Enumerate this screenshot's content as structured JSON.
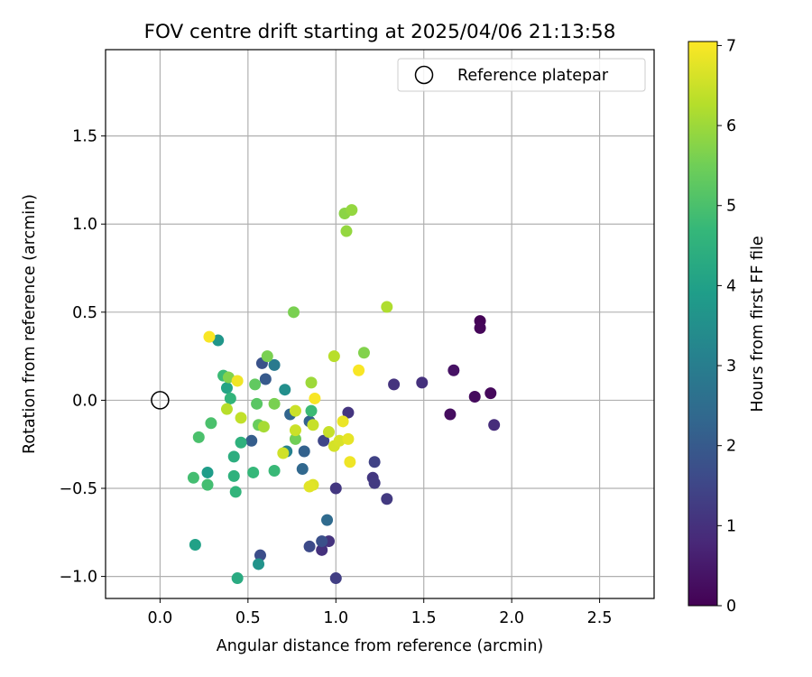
{
  "chart_data": {
    "type": "scatter",
    "title": "FOV centre drift starting at 2025/04/06 21:13:58",
    "xlabel": "Angular distance from reference (arcmin)",
    "ylabel": "Rotation from reference (arcmin)",
    "xlim": [
      -0.31,
      2.81
    ],
    "ylim": [
      -1.125,
      1.99
    ],
    "xticks": [
      0.0,
      0.5,
      1.0,
      1.5,
      2.0,
      2.5
    ],
    "xtick_labels": [
      "0.0",
      "0.5",
      "1.0",
      "1.5",
      "2.0",
      "2.5"
    ],
    "yticks": [
      -1.0,
      -0.5,
      0.0,
      0.5,
      1.0,
      1.5
    ],
    "ytick_labels": [
      "−1.0",
      "−0.5",
      "0.0",
      "0.5",
      "1.0",
      "1.5"
    ],
    "grid": true,
    "legend": {
      "position": "top-right",
      "entries": [
        "Reference platepar"
      ]
    },
    "reference_point": {
      "x": 0.0,
      "y": 0.0,
      "label": "Reference platepar"
    },
    "colorbar": {
      "label": "Hours from first FF file",
      "colormap": "viridis",
      "range": [
        0,
        7.05
      ],
      "ticks": [
        0,
        1,
        2,
        3,
        4,
        5,
        6,
        7
      ],
      "tick_labels": [
        "0",
        "1",
        "2",
        "3",
        "4",
        "5",
        "6",
        "7"
      ],
      "stops": [
        "#440154",
        "#482878",
        "#3e4989",
        "#31688e",
        "#26828e",
        "#1f9e89",
        "#35b779",
        "#6ece58",
        "#b5de2b",
        "#fde725"
      ]
    },
    "series": [
      {
        "points": [
          {
            "x": 1.82,
            "y": 0.45,
            "c": 0.05
          },
          {
            "x": 1.82,
            "y": 0.41,
            "c": 0.1
          },
          {
            "x": 1.88,
            "y": 0.04,
            "c": 0.15
          },
          {
            "x": 1.79,
            "y": 0.02,
            "c": 0.2
          },
          {
            "x": 1.65,
            "y": -0.08,
            "c": 0.25
          },
          {
            "x": 1.67,
            "y": 0.17,
            "c": 0.35
          },
          {
            "x": 1.9,
            "y": -0.14,
            "c": 0.9
          },
          {
            "x": 1.49,
            "y": 0.1,
            "c": 1.0
          },
          {
            "x": 1.33,
            "y": 0.09,
            "c": 1.05
          },
          {
            "x": 1.07,
            "y": -0.07,
            "c": 1.1
          },
          {
            "x": 0.92,
            "y": -0.85,
            "c": 1.0
          },
          {
            "x": 0.96,
            "y": -0.8,
            "c": 1.05
          },
          {
            "x": 1.0,
            "y": -0.5,
            "c": 1.15
          },
          {
            "x": 1.21,
            "y": -0.44,
            "c": 1.15
          },
          {
            "x": 1.22,
            "y": -0.47,
            "c": 1.2
          },
          {
            "x": 1.29,
            "y": -0.56,
            "c": 1.2
          },
          {
            "x": 1.0,
            "y": -1.01,
            "c": 1.3
          },
          {
            "x": 1.22,
            "y": -0.35,
            "c": 1.4
          },
          {
            "x": 0.93,
            "y": -0.23,
            "c": 1.5
          },
          {
            "x": 0.85,
            "y": -0.83,
            "c": 1.6
          },
          {
            "x": 0.57,
            "y": -0.88,
            "c": 1.7
          },
          {
            "x": 0.92,
            "y": -0.8,
            "c": 1.75
          },
          {
            "x": 0.58,
            "y": 0.21,
            "c": 1.8
          },
          {
            "x": 0.6,
            "y": 0.12,
            "c": 2.0
          },
          {
            "x": 0.52,
            "y": -0.23,
            "c": 2.1
          },
          {
            "x": 0.82,
            "y": -0.29,
            "c": 2.2
          },
          {
            "x": 0.85,
            "y": -0.12,
            "c": 2.2
          },
          {
            "x": 0.74,
            "y": -0.08,
            "c": 2.3
          },
          {
            "x": 0.81,
            "y": -0.39,
            "c": 2.35
          },
          {
            "x": 0.95,
            "y": -0.68,
            "c": 2.45
          },
          {
            "x": 0.65,
            "y": 0.2,
            "c": 2.9
          },
          {
            "x": 0.72,
            "y": -0.29,
            "c": 3.1
          },
          {
            "x": 0.71,
            "y": 0.06,
            "c": 3.5
          },
          {
            "x": 0.56,
            "y": -0.93,
            "c": 3.6
          },
          {
            "x": 0.33,
            "y": 0.34,
            "c": 3.7
          },
          {
            "x": 0.27,
            "y": -0.41,
            "c": 3.9
          },
          {
            "x": 0.2,
            "y": -0.82,
            "c": 4.0
          },
          {
            "x": 0.38,
            "y": 0.07,
            "c": 4.1
          },
          {
            "x": 0.44,
            "y": -1.01,
            "c": 4.3
          },
          {
            "x": 0.42,
            "y": -0.32,
            "c": 4.4
          },
          {
            "x": 0.42,
            "y": -0.43,
            "c": 4.5
          },
          {
            "x": 0.46,
            "y": -0.24,
            "c": 4.5
          },
          {
            "x": 0.43,
            "y": -0.52,
            "c": 4.6
          },
          {
            "x": 0.4,
            "y": 0.01,
            "c": 4.6
          },
          {
            "x": 0.53,
            "y": -0.41,
            "c": 4.7
          },
          {
            "x": 0.65,
            "y": -0.4,
            "c": 4.75
          },
          {
            "x": 0.86,
            "y": -0.06,
            "c": 4.8
          },
          {
            "x": 0.36,
            "y": 0.14,
            "c": 4.8
          },
          {
            "x": 0.19,
            "y": -0.44,
            "c": 4.9
          },
          {
            "x": 0.27,
            "y": -0.48,
            "c": 4.9
          },
          {
            "x": 0.22,
            "y": -0.21,
            "c": 5.0
          },
          {
            "x": 0.29,
            "y": -0.13,
            "c": 5.0
          },
          {
            "x": 0.55,
            "y": -0.02,
            "c": 5.2
          },
          {
            "x": 0.54,
            "y": 0.09,
            "c": 5.3
          },
          {
            "x": 0.56,
            "y": -0.14,
            "c": 5.4
          },
          {
            "x": 0.77,
            "y": -0.22,
            "c": 5.5
          },
          {
            "x": 0.76,
            "y": 0.5,
            "c": 5.6
          },
          {
            "x": 0.61,
            "y": 0.25,
            "c": 5.6
          },
          {
            "x": 0.65,
            "y": -0.02,
            "c": 5.6
          },
          {
            "x": 0.39,
            "y": 0.13,
            "c": 5.7
          },
          {
            "x": 1.16,
            "y": 0.27,
            "c": 5.7
          },
          {
            "x": 1.05,
            "y": 1.06,
            "c": 5.8
          },
          {
            "x": 1.09,
            "y": 1.08,
            "c": 5.9
          },
          {
            "x": 1.06,
            "y": 0.96,
            "c": 5.9
          },
          {
            "x": 0.86,
            "y": 0.1,
            "c": 6.0
          },
          {
            "x": 0.59,
            "y": -0.15,
            "c": 6.1
          },
          {
            "x": 1.29,
            "y": 0.53,
            "c": 6.2
          },
          {
            "x": 0.99,
            "y": 0.25,
            "c": 6.3
          },
          {
            "x": 0.38,
            "y": -0.05,
            "c": 6.3
          },
          {
            "x": 0.46,
            "y": -0.1,
            "c": 6.4
          },
          {
            "x": 0.87,
            "y": -0.14,
            "c": 6.45
          },
          {
            "x": 0.96,
            "y": -0.18,
            "c": 6.45
          },
          {
            "x": 0.77,
            "y": -0.17,
            "c": 6.5
          },
          {
            "x": 0.77,
            "y": -0.06,
            "c": 6.5
          },
          {
            "x": 0.7,
            "y": -0.3,
            "c": 6.55
          },
          {
            "x": 0.99,
            "y": -0.26,
            "c": 6.6
          },
          {
            "x": 1.02,
            "y": -0.23,
            "c": 6.65
          },
          {
            "x": 0.87,
            "y": -0.48,
            "c": 6.7
          },
          {
            "x": 0.85,
            "y": -0.49,
            "c": 6.75
          },
          {
            "x": 1.07,
            "y": -0.22,
            "c": 6.8
          },
          {
            "x": 1.04,
            "y": -0.12,
            "c": 6.85
          },
          {
            "x": 1.08,
            "y": -0.35,
            "c": 6.9
          },
          {
            "x": 0.88,
            "y": 0.01,
            "c": 7.0
          },
          {
            "x": 1.13,
            "y": 0.17,
            "c": 7.0
          },
          {
            "x": 0.44,
            "y": 0.11,
            "c": 6.9
          },
          {
            "x": 0.28,
            "y": 0.36,
            "c": 7.0
          }
        ]
      }
    ]
  }
}
